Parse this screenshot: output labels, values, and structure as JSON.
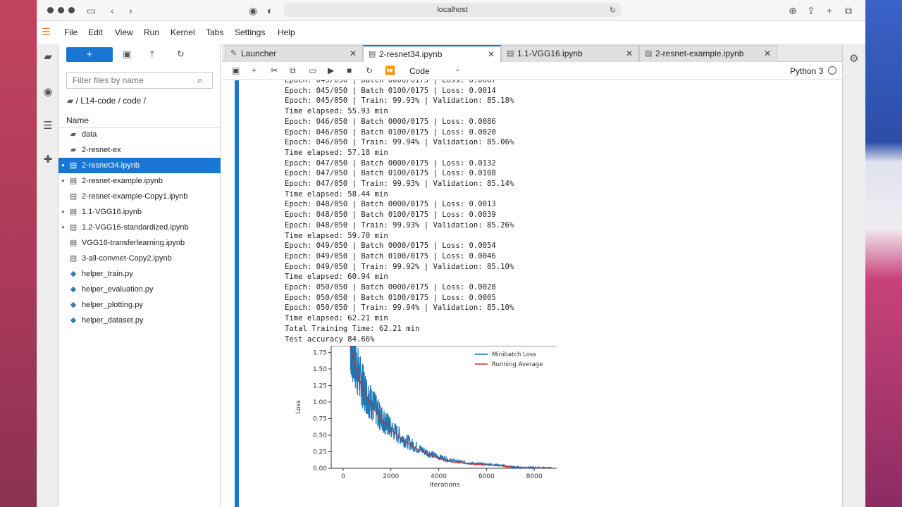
{
  "browser": {
    "address": "localhost",
    "back_icon": "chevron-left-icon",
    "forward_icon": "chevron-right-icon"
  },
  "menu": {
    "items": [
      "File",
      "Edit",
      "View",
      "Run",
      "Kernel",
      "Tabs",
      "Settings",
      "Help"
    ]
  },
  "filebrowser": {
    "new_label": "+",
    "filter_placeholder": "Filter files by name",
    "breadcrumb": "/ L14-code / code /",
    "name_header": "Name",
    "files": [
      {
        "name": "data",
        "type": "folder",
        "running": false,
        "selected": false
      },
      {
        "name": "2-resnet-ex",
        "type": "folder",
        "running": false,
        "selected": false
      },
      {
        "name": "2-resnet34.ipynb",
        "type": "notebook",
        "running": true,
        "selected": true
      },
      {
        "name": "2-resnet-example.ipynb",
        "type": "notebook",
        "running": true,
        "selected": false
      },
      {
        "name": "2-resnet-example-Copy1.ipynb",
        "type": "notebook",
        "running": false,
        "selected": false
      },
      {
        "name": "1.1-VGG16.ipynb",
        "type": "notebook",
        "running": true,
        "selected": false
      },
      {
        "name": "1.2-VGG16-standardized.ipynb",
        "type": "notebook",
        "running": true,
        "selected": false
      },
      {
        "name": "VGG16-transferlearning.ipynb",
        "type": "notebook",
        "running": false,
        "selected": false
      },
      {
        "name": "3-all-convnet-Copy2.ipynb",
        "type": "notebook",
        "running": false,
        "selected": false
      },
      {
        "name": "helper_train.py",
        "type": "python",
        "running": false,
        "selected": false
      },
      {
        "name": "helper_evaluation.py",
        "type": "python",
        "running": false,
        "selected": false
      },
      {
        "name": "helper_plotting.py",
        "type": "python",
        "running": false,
        "selected": false
      },
      {
        "name": "helper_dataset.py",
        "type": "python",
        "running": false,
        "selected": false
      }
    ]
  },
  "tabs": [
    {
      "label": "Launcher",
      "active": false
    },
    {
      "label": "2-resnet34.ipynb",
      "active": true
    },
    {
      "label": "1.1-VGG16.ipynb",
      "active": false
    },
    {
      "label": "2-resnet-example.ipynb",
      "active": false
    }
  ],
  "toolbar": {
    "cell_type": "Code",
    "kernel": "Python 3"
  },
  "output": {
    "lines": [
      "Epoch: 045/050 | Batch 0000/0175 | Loss: 0.0087",
      "Epoch: 045/050 | Batch 0100/0175 | Loss: 0.0014",
      "Epoch: 045/050 | Train: 99.93% | Validation: 85.18%",
      "Time elapsed: 55.93 min",
      "Epoch: 046/050 | Batch 0000/0175 | Loss: 0.0086",
      "Epoch: 046/050 | Batch 0100/0175 | Loss: 0.0020",
      "Epoch: 046/050 | Train: 99.94% | Validation: 85.06%",
      "Time elapsed: 57.18 min",
      "Epoch: 047/050 | Batch 0000/0175 | Loss: 0.0132",
      "Epoch: 047/050 | Batch 0100/0175 | Loss: 0.0108",
      "Epoch: 047/050 | Train: 99.93% | Validation: 85.14%",
      "Time elapsed: 58.44 min",
      "Epoch: 048/050 | Batch 0000/0175 | Loss: 0.0013",
      "Epoch: 048/050 | Batch 0100/0175 | Loss: 0.0039",
      "Epoch: 048/050 | Train: 99.93% | Validation: 85.26%",
      "Time elapsed: 59.70 min",
      "Epoch: 049/050 | Batch 0000/0175 | Loss: 0.0054",
      "Epoch: 049/050 | Batch 0100/0175 | Loss: 0.0046",
      "Epoch: 049/050 | Train: 99.92% | Validation: 85.10%",
      "Time elapsed: 60.94 min",
      "Epoch: 050/050 | Batch 0000/0175 | Loss: 0.0028",
      "Epoch: 050/050 | Batch 0100/0175 | Loss: 0.0005",
      "Epoch: 050/050 | Train: 99.94% | Validation: 85.10%",
      "Time elapsed: 62.21 min",
      "Total Training Time: 62.21 min",
      "Test accuracy 84.66%"
    ]
  },
  "chart_data": {
    "type": "line",
    "xlabel": "Iterations",
    "ylabel": "Loss",
    "xlim": [
      -500,
      9000
    ],
    "ylim": [
      0,
      1.85
    ],
    "xticks": [
      0,
      2000,
      4000,
      6000,
      8000
    ],
    "yticks": [
      0.0,
      0.25,
      0.5,
      0.75,
      1.0,
      1.25,
      1.5,
      1.75
    ],
    "ytick_labels": [
      "0.00",
      "0.25",
      "0.50",
      "0.75",
      "1.00",
      "1.25",
      "1.50",
      "1.75"
    ],
    "legend_position": "top-right",
    "colors": {
      "minibatch": "#1f77b4",
      "running": "#d62728"
    },
    "series": [
      {
        "name": "Minibatch Loss",
        "x": [
          300,
          500,
          750,
          1000,
          1250,
          1500,
          1750,
          2000,
          2500,
          3000,
          3500,
          4000,
          4500,
          5000,
          5500,
          6000,
          6500,
          7000,
          7500,
          8000,
          8750
        ],
        "values": [
          1.9,
          1.6,
          1.3,
          1.1,
          0.95,
          0.8,
          0.7,
          0.6,
          0.45,
          0.33,
          0.24,
          0.17,
          0.12,
          0.09,
          0.07,
          0.06,
          0.05,
          0.02,
          0.01,
          0.01,
          0.005
        ]
      },
      {
        "name": "Running Average",
        "x": [
          300,
          500,
          750,
          1000,
          1250,
          1500,
          1750,
          2000,
          2500,
          3000,
          3500,
          4000,
          4500,
          5000,
          5500,
          6000,
          6500,
          7000,
          7500,
          8000,
          8750
        ],
        "values": [
          1.85,
          1.55,
          1.27,
          1.07,
          0.92,
          0.78,
          0.68,
          0.58,
          0.43,
          0.31,
          0.22,
          0.15,
          0.1,
          0.08,
          0.06,
          0.05,
          0.04,
          0.02,
          0.01,
          0.008,
          0.004
        ]
      }
    ]
  }
}
